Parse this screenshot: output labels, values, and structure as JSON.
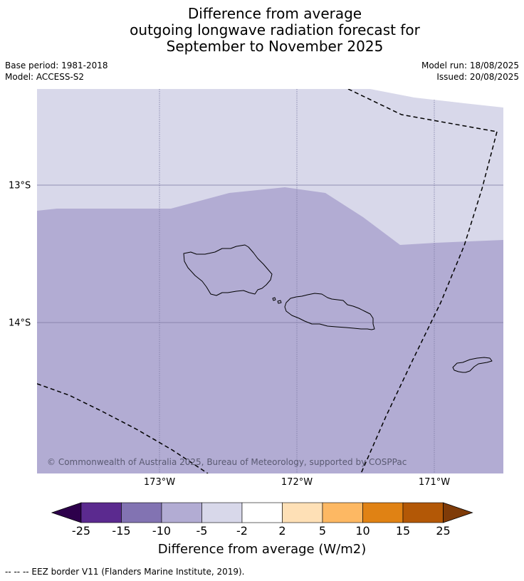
{
  "title": {
    "line1": "Difference from average",
    "line2": "outgoing longwave radiation forecast for",
    "line3": "September to November 2025"
  },
  "meta": {
    "base_period": "Base period: 1981-2018",
    "model": "Model: ACCESS-S2",
    "model_run": "Model run: 18/08/2025",
    "issued": "Issued: 20/08/2025"
  },
  "map": {
    "copyright": "© Commonwealth of Australia 2025, Bureau of Meteorology, supported by COSPPac",
    "longitude_labels": [
      "173°W",
      "172°W",
      "171°W"
    ],
    "latitude_labels": [
      "13°S",
      "14°S"
    ],
    "region_fills": [
      {
        "category": "-5 to -2",
        "color": "#d8d8ea"
      },
      {
        "category": "-10 to -5",
        "color": "#b2acd3"
      }
    ]
  },
  "colorbar": {
    "tick_labels": [
      "-25",
      "-15",
      "-10",
      "-5",
      "-2",
      "2",
      "5",
      "10",
      "15",
      "25"
    ],
    "colors": [
      "#5b2a8f",
      "#8273b2",
      "#b2acd3",
      "#d8d8ea",
      "#ffffff",
      "#fee0b6",
      "#fdb863",
      "#e08214",
      "#b35806"
    ],
    "under_color": "#2d004b",
    "over_color": "#7f3b08",
    "title": "Difference from average (W/m2)"
  },
  "footnote": "--  --  -- EEZ border V11 (Flanders Marine Institute, 2019)."
}
